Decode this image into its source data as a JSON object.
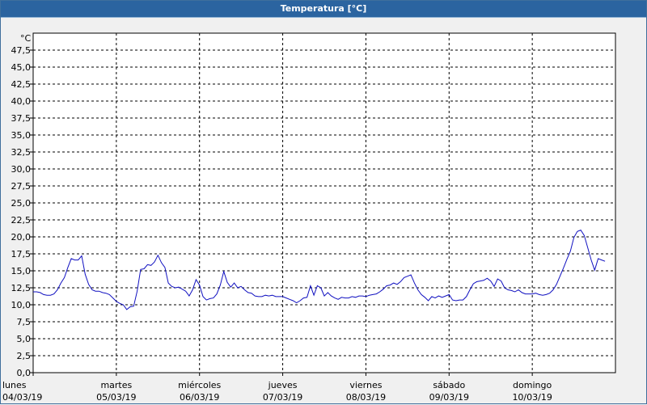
{
  "window": {
    "title": "Temperatura [°C]"
  },
  "chart_data": {
    "type": "line",
    "title": "Temperatura [°C]",
    "ylabel": "°C",
    "xlabel": "",
    "ylim": [
      0,
      50
    ],
    "ytick_labels": [
      "0,0",
      "2,5",
      "5,0",
      "7,5",
      "10,0",
      "12,5",
      "15,0",
      "17,5",
      "20,0",
      "22,5",
      "25,0",
      "27,5",
      "30,0",
      "32,5",
      "35,0",
      "37,5",
      "40,0",
      "42,5",
      "45,0",
      "47,5"
    ],
    "xlim": [
      "2019-03-04T00:00",
      "2019-03-11T00:00"
    ],
    "x_ticks": [
      {
        "day": "lunes",
        "date": "04/03/19",
        "x": "2019-03-04T00:00"
      },
      {
        "day": "martes",
        "date": "05/03/19",
        "x": "2019-03-05T00:00"
      },
      {
        "day": "miércoles",
        "date": "06/03/19",
        "x": "2019-03-06T00:00"
      },
      {
        "day": "jueves",
        "date": "07/03/19",
        "x": "2019-03-07T00:00"
      },
      {
        "day": "viernes",
        "date": "08/03/19",
        "x": "2019-03-08T00:00"
      },
      {
        "day": "sábado",
        "date": "09/03/19",
        "x": "2019-03-09T00:00"
      },
      {
        "day": "domingo",
        "date": "10/03/19",
        "x": "2019-03-10T00:00"
      }
    ],
    "grid": true,
    "series": [
      {
        "color": "#1010c0",
        "points": [
          [
            "2019-03-04T00:00",
            11.9
          ],
          [
            "2019-03-04T01:00",
            11.9
          ],
          [
            "2019-03-04T02:00",
            11.8
          ],
          [
            "2019-03-04T03:00",
            11.5
          ],
          [
            "2019-03-04T04:00",
            11.4
          ],
          [
            "2019-03-04T05:00",
            11.4
          ],
          [
            "2019-03-04T06:00",
            11.6
          ],
          [
            "2019-03-04T07:00",
            12.2
          ],
          [
            "2019-03-04T08:00",
            13.2
          ],
          [
            "2019-03-04T09:00",
            14.0
          ],
          [
            "2019-03-04T10:00",
            15.5
          ],
          [
            "2019-03-04T11:00",
            16.8
          ],
          [
            "2019-03-04T12:00",
            16.6
          ],
          [
            "2019-03-04T13:00",
            16.6
          ],
          [
            "2019-03-04T14:00",
            17.2
          ],
          [
            "2019-03-04T15:00",
            14.5
          ],
          [
            "2019-03-04T16:00",
            13.0
          ],
          [
            "2019-03-04T17:00",
            12.2
          ],
          [
            "2019-03-04T18:00",
            12.0
          ],
          [
            "2019-03-04T19:00",
            12.0
          ],
          [
            "2019-03-04T20:00",
            11.8
          ],
          [
            "2019-03-04T21:00",
            11.7
          ],
          [
            "2019-03-04T22:00",
            11.5
          ],
          [
            "2019-03-04T23:00",
            11.0
          ],
          [
            "2019-03-05T00:00",
            10.5
          ],
          [
            "2019-03-05T01:00",
            10.2
          ],
          [
            "2019-03-05T02:00",
            10.0
          ],
          [
            "2019-03-05T03:00",
            9.3
          ],
          [
            "2019-03-05T04:00",
            9.7
          ],
          [
            "2019-03-05T05:00",
            9.8
          ],
          [
            "2019-03-05T06:00",
            12.0
          ],
          [
            "2019-03-05T07:00",
            15.2
          ],
          [
            "2019-03-05T08:00",
            15.3
          ],
          [
            "2019-03-05T09:00",
            15.9
          ],
          [
            "2019-03-05T10:00",
            15.8
          ],
          [
            "2019-03-05T11:00",
            16.3
          ],
          [
            "2019-03-05T12:00",
            17.3
          ],
          [
            "2019-03-05T13:00",
            16.2
          ],
          [
            "2019-03-05T14:00",
            15.5
          ],
          [
            "2019-03-05T15:00",
            13.2
          ],
          [
            "2019-03-05T16:00",
            12.7
          ],
          [
            "2019-03-05T17:00",
            12.5
          ],
          [
            "2019-03-05T18:00",
            12.6
          ],
          [
            "2019-03-05T19:00",
            12.3
          ],
          [
            "2019-03-05T20:00",
            12.0
          ],
          [
            "2019-03-05T21:00",
            11.3
          ],
          [
            "2019-03-05T22:00",
            12.2
          ],
          [
            "2019-03-05T23:00",
            13.7
          ],
          [
            "2019-03-06T00:00",
            12.9
          ],
          [
            "2019-03-06T01:00",
            11.2
          ],
          [
            "2019-03-06T02:00",
            10.7
          ],
          [
            "2019-03-06T03:00",
            10.9
          ],
          [
            "2019-03-06T04:00",
            11.0
          ],
          [
            "2019-03-06T05:00",
            11.6
          ],
          [
            "2019-03-06T06:00",
            12.9
          ],
          [
            "2019-03-06T07:00",
            14.9
          ],
          [
            "2019-03-06T08:00",
            13.3
          ],
          [
            "2019-03-06T09:00",
            12.6
          ],
          [
            "2019-03-06T10:00",
            13.2
          ],
          [
            "2019-03-06T11:00",
            12.5
          ],
          [
            "2019-03-06T12:00",
            12.7
          ],
          [
            "2019-03-06T13:00",
            12.2
          ],
          [
            "2019-03-06T14:00",
            11.8
          ],
          [
            "2019-03-06T15:00",
            11.7
          ],
          [
            "2019-03-06T16:00",
            11.3
          ],
          [
            "2019-03-06T17:00",
            11.2
          ],
          [
            "2019-03-06T18:00",
            11.2
          ],
          [
            "2019-03-06T19:00",
            11.4
          ],
          [
            "2019-03-06T20:00",
            11.3
          ],
          [
            "2019-03-06T21:00",
            11.4
          ],
          [
            "2019-03-06T22:00",
            11.2
          ],
          [
            "2019-03-06T23:00",
            11.2
          ],
          [
            "2019-03-07T00:00",
            11.2
          ],
          [
            "2019-03-07T01:00",
            11.0
          ],
          [
            "2019-03-07T02:00",
            10.8
          ],
          [
            "2019-03-07T03:00",
            10.6
          ],
          [
            "2019-03-07T04:00",
            10.3
          ],
          [
            "2019-03-07T05:00",
            10.6
          ],
          [
            "2019-03-07T06:00",
            11.0
          ],
          [
            "2019-03-07T07:00",
            11.1
          ],
          [
            "2019-03-07T08:00",
            12.8
          ],
          [
            "2019-03-07T09:00",
            11.4
          ],
          [
            "2019-03-07T10:00",
            12.8
          ],
          [
            "2019-03-07T11:00",
            12.5
          ],
          [
            "2019-03-07T12:00",
            11.3
          ],
          [
            "2019-03-07T13:00",
            11.8
          ],
          [
            "2019-03-07T14:00",
            11.3
          ],
          [
            "2019-03-07T15:00",
            11.0
          ],
          [
            "2019-03-07T16:00",
            10.8
          ],
          [
            "2019-03-07T17:00",
            11.1
          ],
          [
            "2019-03-07T18:00",
            11.0
          ],
          [
            "2019-03-07T19:00",
            11.0
          ],
          [
            "2019-03-07T20:00",
            11.2
          ],
          [
            "2019-03-07T21:00",
            11.1
          ],
          [
            "2019-03-07T22:00",
            11.3
          ],
          [
            "2019-03-07T23:00",
            11.3
          ],
          [
            "2019-03-08T00:00",
            11.2
          ],
          [
            "2019-03-08T01:00",
            11.4
          ],
          [
            "2019-03-08T02:00",
            11.5
          ],
          [
            "2019-03-08T03:00",
            11.6
          ],
          [
            "2019-03-08T04:00",
            11.9
          ],
          [
            "2019-03-08T05:00",
            12.3
          ],
          [
            "2019-03-08T06:00",
            12.8
          ],
          [
            "2019-03-08T07:00",
            12.9
          ],
          [
            "2019-03-08T08:00",
            13.2
          ],
          [
            "2019-03-08T09:00",
            13.0
          ],
          [
            "2019-03-08T10:00",
            13.4
          ],
          [
            "2019-03-08T11:00",
            14.0
          ],
          [
            "2019-03-08T12:00",
            14.2
          ],
          [
            "2019-03-08T13:00",
            14.4
          ],
          [
            "2019-03-08T14:00",
            13.2
          ],
          [
            "2019-03-08T15:00",
            12.2
          ],
          [
            "2019-03-08T16:00",
            11.5
          ],
          [
            "2019-03-08T17:00",
            11.1
          ],
          [
            "2019-03-08T18:00",
            10.6
          ],
          [
            "2019-03-08T19:00",
            11.2
          ],
          [
            "2019-03-08T20:00",
            11.0
          ],
          [
            "2019-03-08T21:00",
            11.3
          ],
          [
            "2019-03-08T22:00",
            11.1
          ],
          [
            "2019-03-08T23:00",
            11.3
          ],
          [
            "2019-03-09T00:00",
            11.5
          ],
          [
            "2019-03-09T01:00",
            10.7
          ],
          [
            "2019-03-09T02:00",
            10.6
          ],
          [
            "2019-03-09T03:00",
            10.7
          ],
          [
            "2019-03-09T04:00",
            10.7
          ],
          [
            "2019-03-09T05:00",
            11.2
          ],
          [
            "2019-03-09T06:00",
            12.2
          ],
          [
            "2019-03-09T07:00",
            13.1
          ],
          [
            "2019-03-09T08:00",
            13.4
          ],
          [
            "2019-03-09T09:00",
            13.5
          ],
          [
            "2019-03-09T10:00",
            13.6
          ],
          [
            "2019-03-09T11:00",
            13.9
          ],
          [
            "2019-03-09T12:00",
            13.5
          ],
          [
            "2019-03-09T13:00",
            12.7
          ],
          [
            "2019-03-09T14:00",
            13.8
          ],
          [
            "2019-03-09T15:00",
            13.5
          ],
          [
            "2019-03-09T16:00",
            12.5
          ],
          [
            "2019-03-09T17:00",
            12.2
          ],
          [
            "2019-03-09T18:00",
            12.1
          ],
          [
            "2019-03-09T19:00",
            11.9
          ],
          [
            "2019-03-09T20:00",
            12.2
          ],
          [
            "2019-03-09T21:00",
            11.8
          ],
          [
            "2019-03-09T22:00",
            11.6
          ],
          [
            "2019-03-09T23:00",
            11.6
          ],
          [
            "2019-03-10T00:00",
            11.6
          ],
          [
            "2019-03-10T01:00",
            11.7
          ],
          [
            "2019-03-10T02:00",
            11.5
          ],
          [
            "2019-03-10T03:00",
            11.4
          ],
          [
            "2019-03-10T04:00",
            11.5
          ],
          [
            "2019-03-10T05:00",
            11.7
          ],
          [
            "2019-03-10T06:00",
            12.2
          ],
          [
            "2019-03-10T07:00",
            13.0
          ],
          [
            "2019-03-10T08:00",
            14.2
          ],
          [
            "2019-03-10T09:00",
            15.4
          ],
          [
            "2019-03-10T10:00",
            16.7
          ],
          [
            "2019-03-10T11:00",
            17.9
          ],
          [
            "2019-03-10T12:00",
            19.9
          ],
          [
            "2019-03-10T13:00",
            20.8
          ],
          [
            "2019-03-10T14:00",
            21.0
          ],
          [
            "2019-03-10T15:00",
            20.2
          ],
          [
            "2019-03-10T16:00",
            18.4
          ],
          [
            "2019-03-10T17:00",
            16.6
          ],
          [
            "2019-03-10T18:00",
            15.1
          ],
          [
            "2019-03-10T19:00",
            16.8
          ],
          [
            "2019-03-10T20:00",
            16.6
          ],
          [
            "2019-03-10T21:00",
            16.4
          ]
        ]
      }
    ]
  }
}
